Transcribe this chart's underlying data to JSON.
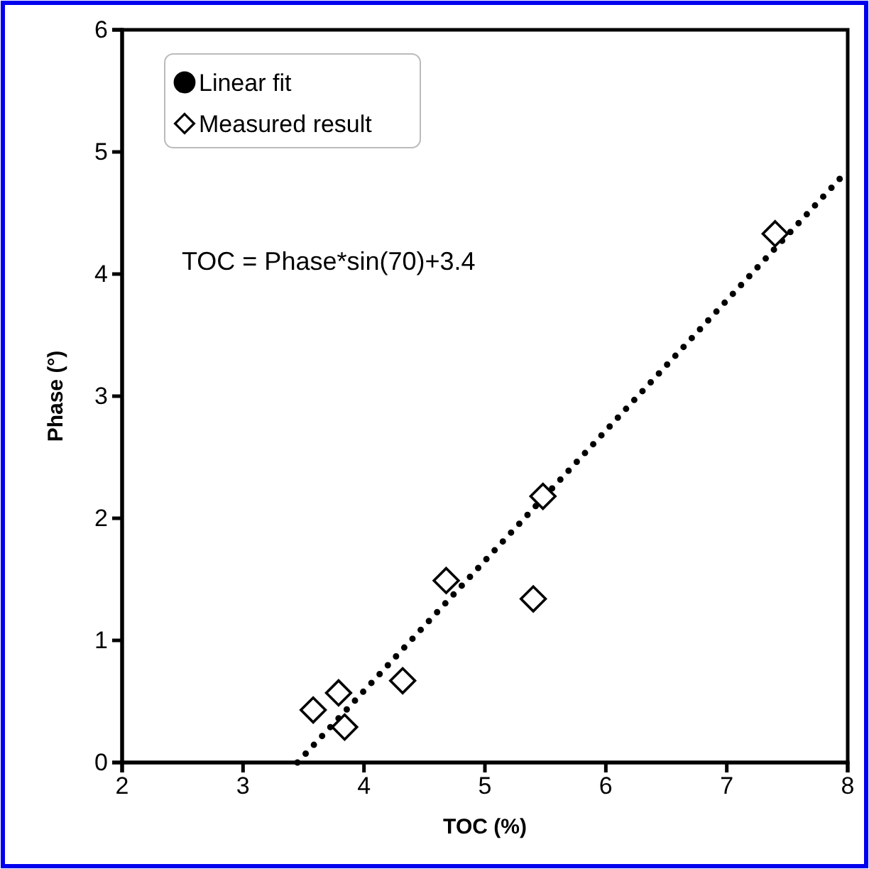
{
  "chart_data": {
    "type": "scatter",
    "xlabel": "TOC (%)",
    "ylabel": "Phase (°)",
    "xlim": [
      2,
      8
    ],
    "ylim": [
      0,
      6
    ],
    "xticks": [
      2,
      3,
      4,
      5,
      6,
      7,
      8
    ],
    "yticks": [
      0,
      1,
      2,
      3,
      4,
      5,
      6
    ],
    "grid": false,
    "legend": "top left",
    "annotations": [
      "TOC = Phase*sin(70)+3.4"
    ],
    "series": [
      {
        "name": "Linear fit",
        "type": "line",
        "color": "#000000",
        "line_style": "dotted",
        "marker": "none",
        "x": [
          3.45,
          8
        ],
        "values": [
          0,
          4.85
        ]
      },
      {
        "name": "Measured result",
        "color": "#000000",
        "marker": "diamond",
        "x": [
          3.58,
          3.79,
          3.84,
          4.32,
          4.68,
          5.4,
          5.48,
          7.4
        ],
        "values": [
          0.43,
          0.57,
          0.29,
          0.67,
          1.49,
          1.34,
          2.18,
          4.33
        ]
      }
    ]
  }
}
